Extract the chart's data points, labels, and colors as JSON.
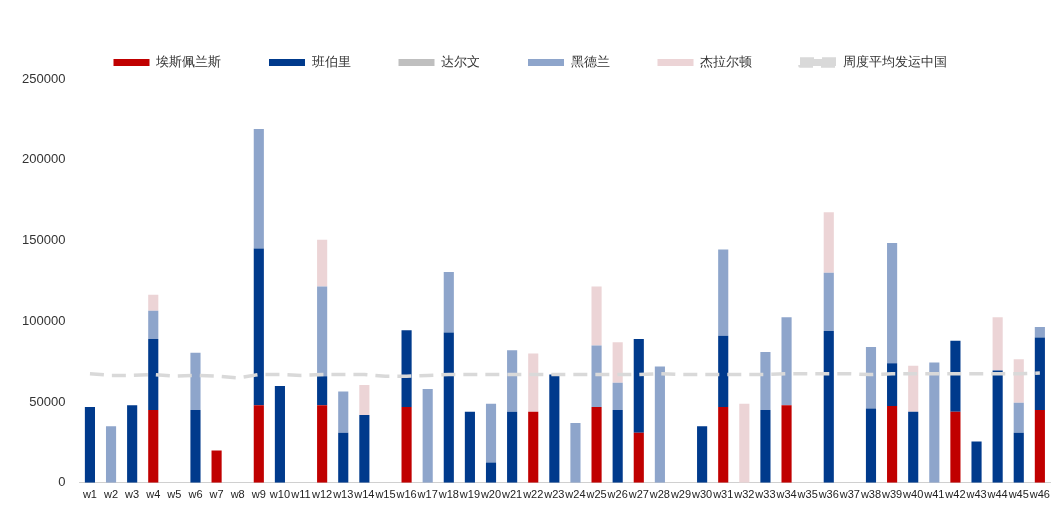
{
  "chart_data": {
    "type": "bar",
    "stacked": true,
    "legend": "top",
    "ylim": [
      0,
      250000
    ],
    "yticks": [
      0,
      50000,
      100000,
      150000,
      200000,
      250000
    ],
    "categories": [
      "w1",
      "w2",
      "w3",
      "w4",
      "w5",
      "w6",
      "w7",
      "w8",
      "w9",
      "w10",
      "w11",
      "w12",
      "w13",
      "w14",
      "w15",
      "w16",
      "w17",
      "w18",
      "w19",
      "w20",
      "w21",
      "w22",
      "w23",
      "w24",
      "w25",
      "w26",
      "w27",
      "w28",
      "w29",
      "w30",
      "w31",
      "w32",
      "w33",
      "w34",
      "w35",
      "w36",
      "w37",
      "w38",
      "w39",
      "w40",
      "w41",
      "w42",
      "w43",
      "w44",
      "w45",
      "w46"
    ],
    "series": [
      {
        "name": "埃斯佩兰斯",
        "color": "#c00000",
        "values": [
          null,
          null,
          null,
          45000,
          null,
          null,
          20000,
          null,
          48000,
          null,
          null,
          48000,
          null,
          null,
          null,
          47000,
          null,
          null,
          null,
          null,
          null,
          44000,
          null,
          null,
          47000,
          null,
          31000,
          null,
          null,
          null,
          47000,
          null,
          null,
          48000,
          null,
          null,
          null,
          null,
          47500,
          null,
          null,
          44000,
          null,
          null,
          null,
          45000
        ]
      },
      {
        "name": "班伯里",
        "color": "#003a8c",
        "values": [
          47000,
          null,
          48000,
          44000,
          null,
          45000,
          null,
          null,
          97000,
          60000,
          null,
          18000,
          31000,
          42000,
          null,
          47500,
          null,
          93000,
          44000,
          12500,
          44000,
          null,
          67000,
          null,
          null,
          45000,
          58000,
          null,
          null,
          35000,
          44000,
          null,
          45000,
          null,
          null,
          94000,
          null,
          46000,
          26500,
          44000,
          null,
          44000,
          25500,
          69500,
          31000,
          45000
        ]
      },
      {
        "name": "达尔文",
        "color": "#bfbfbf",
        "values": [
          null,
          null,
          null,
          null,
          null,
          null,
          null,
          null,
          null,
          null,
          null,
          null,
          null,
          null,
          null,
          null,
          null,
          null,
          null,
          null,
          null,
          null,
          null,
          null,
          null,
          null,
          null,
          null,
          null,
          null,
          null,
          null,
          null,
          null,
          null,
          null,
          null,
          null,
          null,
          null,
          null,
          null,
          null,
          null,
          null,
          null
        ]
      },
      {
        "name": "黑德兰",
        "color": "#8ea5cb",
        "values": [
          null,
          35000,
          null,
          17500,
          null,
          35500,
          null,
          null,
          74000,
          null,
          null,
          55500,
          25500,
          null,
          null,
          null,
          58000,
          37500,
          null,
          36500,
          38000,
          null,
          null,
          37000,
          38000,
          17000,
          null,
          72000,
          null,
          null,
          53500,
          null,
          36000,
          54500,
          null,
          36000,
          null,
          38000,
          74500,
          null,
          74500,
          null,
          null,
          null,
          18500,
          6500
        ]
      },
      {
        "name": "杰拉尔顿",
        "color": "#ecd4d6",
        "values": [
          null,
          null,
          null,
          10000,
          null,
          null,
          null,
          null,
          null,
          null,
          null,
          29000,
          null,
          18500,
          null,
          null,
          null,
          null,
          null,
          null,
          null,
          36000,
          null,
          null,
          36500,
          25000,
          null,
          null,
          null,
          null,
          null,
          49000,
          null,
          null,
          null,
          37500,
          null,
          null,
          null,
          28500,
          null,
          null,
          null,
          33000,
          27000,
          null
        ]
      },
      {
        "name": "周度平均发运中国",
        "type": "line",
        "color": "#d9d9d9",
        "line_style": "dashed",
        "marker": "none",
        "values": [
          67500,
          66500,
          66500,
          67000,
          66000,
          66500,
          66000,
          65000,
          67000,
          67000,
          66500,
          67000,
          67000,
          67000,
          66000,
          66000,
          66500,
          67000,
          67000,
          67000,
          67000,
          67000,
          67000,
          67000,
          67000,
          67000,
          67000,
          67500,
          67000,
          67000,
          67000,
          67000,
          67000,
          67500,
          67500,
          67500,
          67500,
          67000,
          67500,
          67500,
          67500,
          67500,
          67500,
          67500,
          67500,
          68000
        ]
      }
    ]
  }
}
